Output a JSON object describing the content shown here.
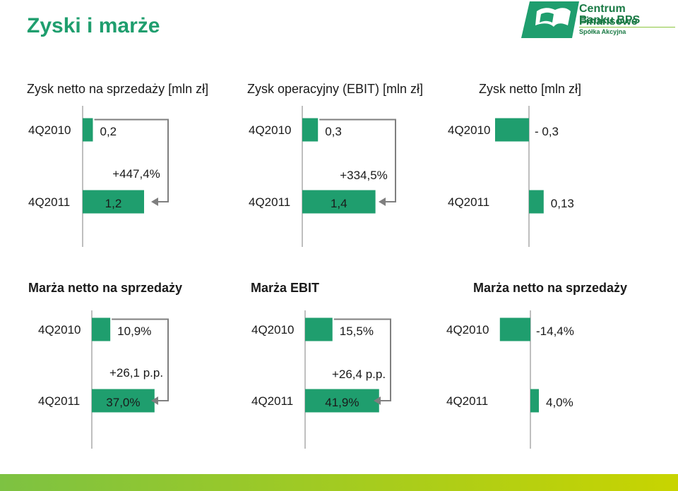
{
  "page": {
    "title": "Zyski i marże"
  },
  "logo": {
    "line1": "Centrum Finansowe",
    "line2": "Banku BPS",
    "line3": "Spółka Akcyjna"
  },
  "colors": {
    "bar": "#1f9e6e",
    "title": "#1f9e6e",
    "axis": "#bfbfbf",
    "connector": "#7f7f7f",
    "footer_start": "#7dc242",
    "footer_end": "#c8d400"
  },
  "chart_data": [
    {
      "type": "bar",
      "title": "Zysk netto na sprzedaży [mln zł]",
      "categories": [
        "4Q2010",
        "4Q2011"
      ],
      "values": [
        0.2,
        1.2
      ],
      "labels": [
        "0,2",
        "1,2"
      ],
      "change": "+447,4%",
      "title_bold": false
    },
    {
      "type": "bar",
      "title": "Zysk operacyjny (EBIT) [mln zł]",
      "categories": [
        "4Q2010",
        "4Q2011"
      ],
      "values": [
        0.3,
        1.4
      ],
      "labels": [
        "0,3",
        "1,4"
      ],
      "change": "+334,5%",
      "title_bold": false
    },
    {
      "type": "bar",
      "title": "Zysk netto [mln zł]",
      "categories": [
        "4Q2010",
        "4Q2011"
      ],
      "values": [
        -0.3,
        0.13
      ],
      "labels": [
        "- 0,3",
        "0,13"
      ],
      "change": "",
      "title_bold": false
    },
    {
      "type": "bar",
      "title": "Marża netto na sprzedaży",
      "categories": [
        "4Q2010",
        "4Q2011"
      ],
      "values": [
        10.9,
        37.0
      ],
      "labels": [
        "10,9%",
        "37,0%"
      ],
      "change": "+26,1 p.p.",
      "title_bold": true
    },
    {
      "type": "bar",
      "title": "Marża EBIT",
      "categories": [
        "4Q2010",
        "4Q2011"
      ],
      "values": [
        15.5,
        41.9
      ],
      "labels": [
        "15,5%",
        "41,9%"
      ],
      "change": "+26,4 p.p.",
      "title_bold": true
    },
    {
      "type": "bar",
      "title": "Marża netto na sprzedaży",
      "categories": [
        "4Q2010",
        "4Q2011"
      ],
      "values": [
        -14.4,
        4.0
      ],
      "labels": [
        "-14,4%",
        "4,0%"
      ],
      "change": "",
      "title_bold": true
    }
  ]
}
